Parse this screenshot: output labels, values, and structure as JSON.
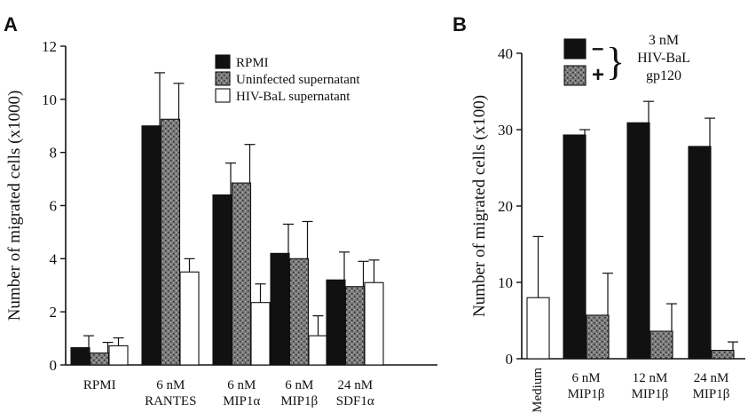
{
  "panel_labels": [
    "A",
    "B"
  ],
  "colors": {
    "black_bar": "#111111",
    "gray_bar": "#7a7a7a",
    "white_bar": "#ffffff",
    "axis": "#111111"
  },
  "chart_data": [
    {
      "type": "bar",
      "panel": "A",
      "ylabel": "Number of migrated cells (x1000)",
      "xlabel": "",
      "ylim": [
        0,
        12
      ],
      "yticks": [
        0,
        2,
        4,
        6,
        8,
        10,
        12
      ],
      "grid": false,
      "legend_position": "top-right",
      "categories": [
        [
          "RPMI"
        ],
        [
          "6 nM",
          "RANTES"
        ],
        [
          "6 nM",
          "MIP1α"
        ],
        [
          "6 nM",
          "MIP1β"
        ],
        [
          "24 nM",
          "SDF1α"
        ]
      ],
      "series": [
        {
          "name": "RPMI",
          "color": "#111111",
          "pattern": "solid",
          "values": [
            0.65,
            9.0,
            6.4,
            4.2,
            3.2
          ],
          "errors": [
            0.45,
            2.0,
            1.2,
            1.1,
            1.05
          ]
        },
        {
          "name": "Uninfected supernatant",
          "color": "#7a7a7a",
          "pattern": "speckled",
          "values": [
            0.45,
            9.25,
            6.85,
            4.0,
            2.95
          ],
          "errors": [
            0.4,
            1.35,
            1.45,
            1.4,
            0.95
          ]
        },
        {
          "name": "HIV-BaL supernatant",
          "color": "#ffffff",
          "pattern": "outline",
          "values": [
            0.72,
            3.5,
            2.35,
            1.1,
            3.1
          ],
          "errors": [
            0.3,
            0.5,
            0.7,
            0.75,
            0.85
          ]
        }
      ]
    },
    {
      "type": "bar",
      "panel": "B",
      "ylabel": "Number of migrated cells (x100)",
      "xlabel": "",
      "ylim": [
        0,
        40
      ],
      "yticks": [
        0,
        10,
        20,
        30,
        40
      ],
      "grid": false,
      "legend_position": "top-right",
      "legend_title": [
        "3 nM",
        "HIV-BaL",
        "gp120"
      ],
      "categories": [
        [
          "Medium"
        ],
        [
          "6 nM",
          "MIP1β"
        ],
        [
          "12 nM",
          "MIP1β"
        ],
        [
          "24 nM",
          "MIP1β"
        ]
      ],
      "series": [
        {
          "name": "–",
          "color": "#111111",
          "pattern": "solid",
          "values": [
            null,
            29.3,
            30.9,
            27.8
          ],
          "errors": [
            null,
            0.7,
            2.8,
            3.7
          ]
        },
        {
          "name": "+",
          "color": "#7a7a7a",
          "pattern": "speckled",
          "values": [
            null,
            5.7,
            3.6,
            1.1
          ],
          "errors": [
            null,
            5.5,
            3.6,
            1.1
          ]
        },
        {
          "name": "",
          "color": "#ffffff",
          "pattern": "outline",
          "values": [
            8.0,
            null,
            null,
            null
          ],
          "errors": [
            8.0,
            null,
            null,
            null
          ]
        }
      ]
    }
  ]
}
